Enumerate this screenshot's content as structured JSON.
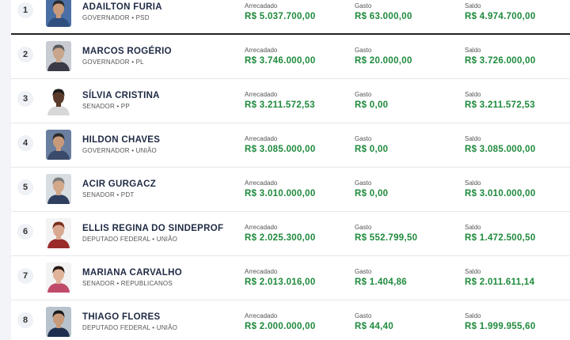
{
  "labels": {
    "arrecadado": "Arrecadado",
    "gasto": "Gasto",
    "saldo": "Saldo"
  },
  "colors": {
    "value_green": "#1e8a3c",
    "name_navy": "#1f2a44"
  },
  "candidates": [
    {
      "rank": "1",
      "name": "ADAILTON FURIA",
      "role": "GOVERNADOR • PSD",
      "arrecadado": "R$ 5.037.700,00",
      "gasto": "R$ 63.000,00",
      "saldo": "R$ 4.974.700,00",
      "photo": {
        "bg": "#4a6fa5",
        "skin": "#c99a7a",
        "hair": "#2a2a2a",
        "shirt": "#2f4f7f"
      }
    },
    {
      "rank": "2",
      "name": "MARCOS ROGÉRIO",
      "role": "GOVERNADOR • PL",
      "arrecadado": "R$ 3.746.000,00",
      "gasto": "R$ 20.000,00",
      "saldo": "R$ 3.726.000,00",
      "photo": {
        "bg": "#c8ccd2",
        "skin": "#c9a58c",
        "hair": "#5a5a5a",
        "shirt": "#3a3a46"
      }
    },
    {
      "rank": "3",
      "name": "SÍLVIA CRISTINA",
      "role": "SENADOR • PP",
      "arrecadado": "R$ 3.211.572,53",
      "gasto": "R$ 0,00",
      "saldo": "R$ 3.211.572,53",
      "photo": {
        "bg": "#ffffff",
        "skin": "#5a3a2a",
        "hair": "#1a1a1a",
        "shirt": "#d8d8d8"
      }
    },
    {
      "rank": "4",
      "name": "HILDON CHAVES",
      "role": "GOVERNADOR • UNIÃO",
      "arrecadado": "R$ 3.085.000,00",
      "gasto": "R$ 0,00",
      "saldo": "R$ 3.085.000,00",
      "photo": {
        "bg": "#6a7fa0",
        "skin": "#c99a7a",
        "hair": "#2a2a2a",
        "shirt": "#3a4a6a"
      }
    },
    {
      "rank": "5",
      "name": "ACIR GURGACZ",
      "role": "SENADOR • PDT",
      "arrecadado": "R$ 3.010.000,00",
      "gasto": "R$ 0,00",
      "saldo": "R$ 3.010.000,00",
      "photo": {
        "bg": "#d8dde2",
        "skin": "#d2a88a",
        "hair": "#7a7a7a",
        "shirt": "#2f3f5f"
      }
    },
    {
      "rank": "6",
      "name": "ELLIS REGINA DO SINDEPROF",
      "role": "DEPUTADO FEDERAL • UNIÃO",
      "arrecadado": "R$ 2.025.300,00",
      "gasto": "R$ 552.799,50",
      "saldo": "R$ 1.472.500,50",
      "photo": {
        "bg": "#f3f3f3",
        "skin": "#d9a890",
        "hair": "#7a2e1e",
        "shirt": "#9a2a2a"
      }
    },
    {
      "rank": "7",
      "name": "MARIANA CARVALHO",
      "role": "SENADOR • REPUBLICANOS",
      "arrecadado": "R$ 2.013.016,00",
      "gasto": "R$ 1.404,86",
      "saldo": "R$ 2.011.611,14",
      "photo": {
        "bg": "#f3f3f3",
        "skin": "#e0b49a",
        "hair": "#2a1a14",
        "shirt": "#c04a6a"
      }
    },
    {
      "rank": "8",
      "name": "THIAGO FLORES",
      "role": "DEPUTADO FEDERAL • UNIÃO",
      "arrecadado": "R$ 2.000.000,00",
      "gasto": "R$ 44,40",
      "saldo": "R$ 1.999.955,60",
      "photo": {
        "bg": "#b8c2cc",
        "skin": "#c99a7a",
        "hair": "#1a1a1a",
        "shirt": "#1f2f4f"
      }
    }
  ]
}
